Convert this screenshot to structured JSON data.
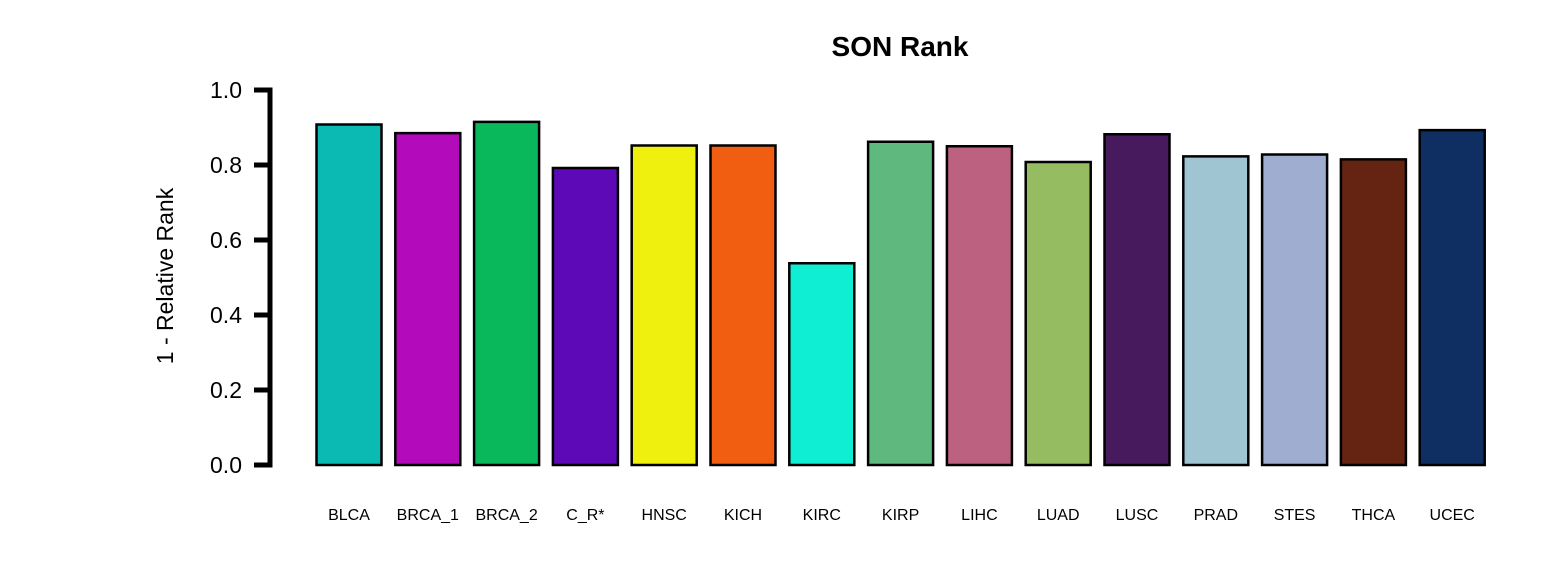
{
  "chart_data": {
    "type": "bar",
    "title": "SON Rank",
    "xlabel": "",
    "ylabel": "1 - Relative Rank",
    "ylim": [
      0,
      1
    ],
    "yticks": [
      "0.0",
      "0.2",
      "0.4",
      "0.6",
      "0.8",
      "1.0"
    ],
    "grid": false,
    "categories": [
      "BLCA",
      "BRCA_1",
      "BRCA_2",
      "C_R*",
      "HNSC",
      "KICH",
      "KIRC",
      "KIRP",
      "LIHC",
      "LUAD",
      "LUSC",
      "PRAD",
      "STES",
      "THCA",
      "UCEC"
    ],
    "values": [
      0.908,
      0.885,
      0.915,
      0.792,
      0.852,
      0.852,
      0.538,
      0.862,
      0.85,
      0.808,
      0.882,
      0.823,
      0.828,
      0.815,
      0.893
    ],
    "colors": [
      "#0BBAB3",
      "#B30BBC",
      "#08B85A",
      "#5E09B7",
      "#EFF00E",
      "#F15E12",
      "#0FEED3",
      "#5FB97E",
      "#BD6180",
      "#96BC62",
      "#471A5E",
      "#A0C5D2",
      "#9FADD1",
      "#652412",
      "#0F2F63"
    ]
  }
}
